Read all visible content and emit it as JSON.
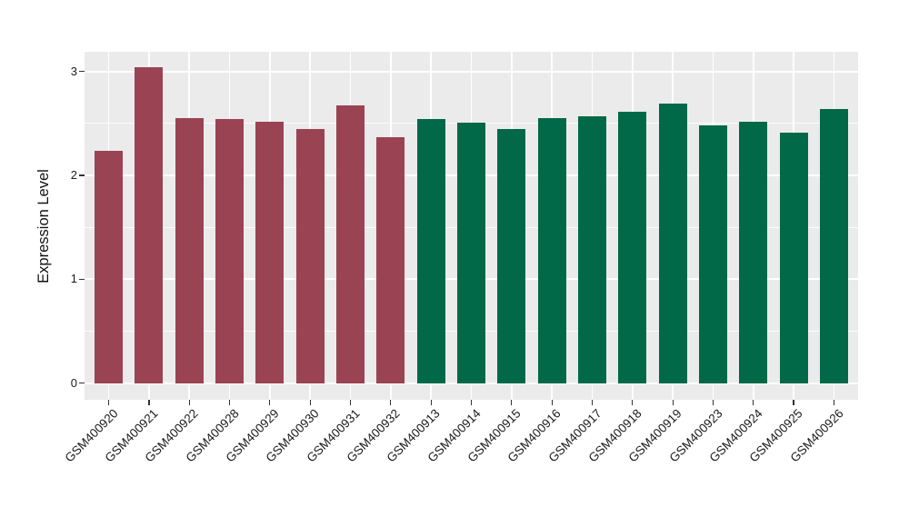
{
  "chart_data": {
    "type": "bar",
    "title": "",
    "xlabel": "",
    "ylabel": "Expression Level",
    "legend_position": "none",
    "grid": true,
    "panel_bg": "#EBEBEB",
    "grid_color": "#FFFFFF",
    "axis_text_color": "#1a1a1a",
    "tick_mark_color": "#333333",
    "ylim": [
      -0.16,
      3.19
    ],
    "yticks": [
      0,
      1,
      2,
      3
    ],
    "yticks_minor": [
      0.5,
      1.5,
      2.5
    ],
    "x_label_angle_deg": 45,
    "categories": [
      "GSM400920",
      "GSM400921",
      "GSM400922",
      "GSM400928",
      "GSM400929",
      "GSM400930",
      "GSM400931",
      "GSM400932",
      "GSM400913",
      "GSM400914",
      "GSM400915",
      "GSM400916",
      "GSM400917",
      "GSM400918",
      "GSM400919",
      "GSM400923",
      "GSM400924",
      "GSM400925",
      "GSM400926"
    ],
    "values": [
      2.24,
      3.04,
      2.55,
      2.54,
      2.52,
      2.45,
      2.67,
      2.37,
      2.54,
      2.51,
      2.45,
      2.55,
      2.57,
      2.61,
      2.69,
      2.48,
      2.52,
      2.41,
      2.64
    ],
    "groups": [
      "maroon",
      "maroon",
      "maroon",
      "maroon",
      "maroon",
      "maroon",
      "maroon",
      "maroon",
      "green",
      "green",
      "green",
      "green",
      "green",
      "green",
      "green",
      "green",
      "green",
      "green",
      "green"
    ],
    "group_colors": {
      "maroon": "#9A4352",
      "green": "#016948"
    }
  }
}
